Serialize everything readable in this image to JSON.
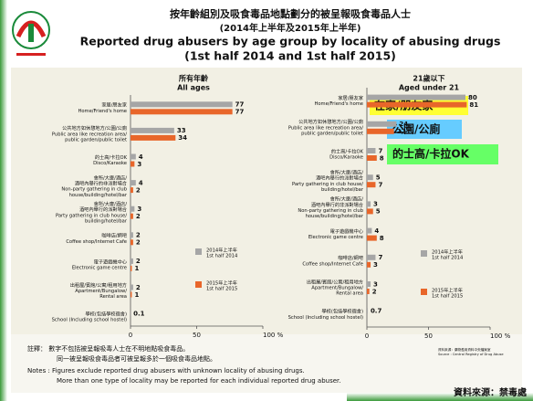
{
  "header": {
    "title_zh": "按年齡組別及吸食毒品地點劃分的被呈報吸食毒品人士",
    "period_zh": "(2014年上半年及2015年上半年)",
    "title_en": "Reported drug abusers by age group by locality of abusing drugs",
    "period_en": "(1st half 2014 and 1st half 2015)"
  },
  "chart_data": [
    {
      "type": "bar",
      "orientation": "horizontal",
      "title_zh": "所有年齡",
      "title_en": "All ages",
      "categories": [
        [
          "家居/朋友家",
          "Home/Friend's home"
        ],
        [
          "公共地方如休憩地方/公園/公廁",
          "Public area like recreation area/",
          "public garden/public toilet"
        ],
        [
          "的士高/卡拉OK",
          "Disco/Karaoke"
        ],
        [
          "會所/大廈/酒店/",
          "酒吧內舉行的非派對場合",
          "Non-party gathering in club",
          "house/building/hotel/bar"
        ],
        [
          "會所/大廈/酒店/",
          "酒吧內舉行的派對場合",
          "Party gathering in club house/",
          "building/hotel/bar"
        ],
        [
          "咖啡店/網吧",
          "Coffee shop/Internet Cafe"
        ],
        [
          "電子遊戲機中心",
          "Electronic game centre"
        ],
        [
          "出租屋/賓館/公寓/租用地方",
          "Apartment/Bungalow/",
          "Rental area"
        ],
        [
          "學校(包括學校宿舍)",
          "School (Including school hostel)"
        ]
      ],
      "series": [
        {
          "name_zh": "2014年上半年",
          "name": "1st half 2014",
          "color": "#a6a6a6",
          "values": [
            77,
            33,
            4,
            4,
            3,
            2,
            2,
            2,
            0.1
          ]
        },
        {
          "name_zh": "2015年上半年",
          "name": "1st half 2015",
          "color": "#e8662a",
          "values": [
            77,
            34,
            3,
            2,
            2,
            2,
            1,
            1,
            null
          ]
        }
      ],
      "xlim": [
        0,
        100
      ],
      "xticks": [
        0,
        50,
        {
          "value": 100,
          "label": "100 %"
        }
      ]
    },
    {
      "type": "bar",
      "orientation": "horizontal",
      "title_zh": "21歲以下",
      "title_en": "Aged under 21",
      "categories": [
        [
          "家居/朋友家",
          "Home/Friend's home"
        ],
        [
          "公共地方如休憩地方/公園/公廁",
          "Public area like recreation area/",
          "public garden/public toilet"
        ],
        [
          "的士高/卡拉OK",
          "Disco/Karaoke"
        ],
        [
          "會所/大廈/酒店/",
          "酒吧內舉行的派對場合",
          "Party gathering in club house/",
          "building/hotel/bar"
        ],
        [
          "會所/大廈/酒店/",
          "酒吧內舉行的非派對場合",
          "Non-party gathering in club",
          "house/building/hotel/bar"
        ],
        [
          "電子遊戲機中心",
          "Electronic game centre"
        ],
        [
          "咖啡店/網吧",
          "Coffee shop/Internet Cafe"
        ],
        [
          "出租屋/賓館/公寓/租用地方",
          "Apartment/Bungalow/",
          "Rental area"
        ],
        [
          "學校(包括學校宿舍)",
          "School (Including school hostel)"
        ]
      ],
      "series": [
        {
          "name_zh": "2014年上半年",
          "name": "1st half 2014",
          "color": "#a6a6a6",
          "values": [
            80,
            24,
            7,
            5,
            3,
            4,
            7,
            3,
            0.7
          ]
        },
        {
          "name_zh": "2015年上半年",
          "name": "1st half 2015",
          "color": "#e8662a",
          "values": [
            81,
            22,
            8,
            7,
            5,
            8,
            3,
            2,
            null
          ]
        }
      ],
      "xlim": [
        0,
        100
      ],
      "xticks": [
        0,
        50,
        {
          "value": 100,
          "label": "100 %"
        }
      ]
    }
  ],
  "notes": [
    "註釋：  數字不包括被呈報吸毒人士在不明地點吸食毒品。",
    "同一被呈報吸食毒品者可被呈報多於一個吸食毒品地點。",
    "Notes :  Figures exclude reported drug abusers with unknown locality of abusing drugs.",
    "More than one type of locality may be reported for each individual reported drug abuser."
  ],
  "source": [
    "資料來源：藥物濫用資料中央檔案室",
    "Source : Central Registry of Drug Abuse"
  ],
  "callouts": [
    "在家/朋友家",
    "公園/公廁",
    "的士高/卡拉OK"
  ],
  "credit": "資料來源：禁毒處"
}
